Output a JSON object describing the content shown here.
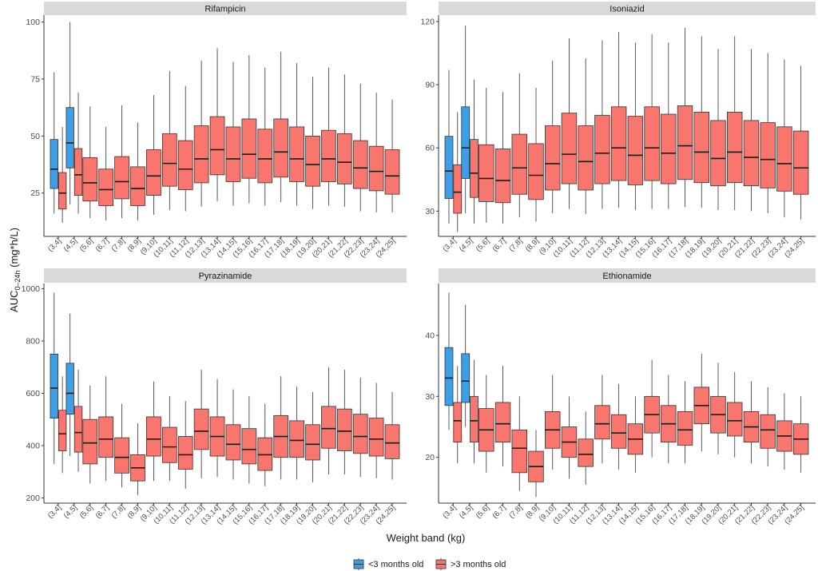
{
  "chart_data": {
    "type": "box",
    "xlabel": "Weight band (kg)",
    "ylabel": "AUC",
    "ylabel_sub": "0–24h",
    "ylabel_unit": " (mg*h/L)",
    "categories": [
      "(3,4]",
      "(4,5]",
      "(5,6]",
      "(6,7]",
      "(7,8]",
      "(8,9]",
      "(9,10]",
      "(10,11]",
      "(11,12]",
      "(12,13]",
      "(13,14]",
      "(14,15]",
      "(15,16]",
      "(16,17]",
      "(17,18]",
      "(18,19]",
      "(19,20]",
      "(20,21]",
      "(21,22]",
      "(22,23]",
      "(23,24]",
      "(24,25]"
    ],
    "legend": [
      {
        "label": "<3 months old",
        "color": "#3d9fe8"
      },
      {
        "label": ">3 months old",
        "color": "#f8766d"
      }
    ],
    "panels": [
      {
        "title": "Rifampicin",
        "ylim": [
          6,
          103
        ],
        "yticks": [
          25,
          50,
          75,
          100
        ],
        "young": [
          {
            "category": "(3,4]",
            "min": 16,
            "q1": 27,
            "median": 35.5,
            "q3": 48.5,
            "max": 78
          },
          {
            "category": "(4,5]",
            "min": 20,
            "q1": 36,
            "median": 47,
            "q3": 62.5,
            "max": 100
          }
        ],
        "older": [
          {
            "category": "(3,4]",
            "min": 12,
            "q1": 18,
            "median": 25,
            "q3": 34,
            "max": 54
          },
          {
            "category": "(4,5]",
            "min": 16,
            "q1": 24,
            "median": 33,
            "q3": 44.5,
            "max": 69
          },
          {
            "category": "(5,6]",
            "min": 14,
            "q1": 21.5,
            "median": 29.5,
            "q3": 40.5,
            "max": 63
          },
          {
            "category": "(6,7]",
            "min": 13,
            "q1": 19.5,
            "median": 26.5,
            "q3": 35.5,
            "max": 54
          },
          {
            "category": "(7,8]",
            "min": 14,
            "q1": 22.5,
            "median": 30,
            "q3": 41,
            "max": 63.5
          },
          {
            "category": "(8,9]",
            "min": 13,
            "q1": 19.5,
            "median": 27,
            "q3": 36.5,
            "max": 56
          },
          {
            "category": "(9,10]",
            "min": 15.5,
            "q1": 24,
            "median": 32.5,
            "q3": 44,
            "max": 68
          },
          {
            "category": "(10,11]",
            "min": 17.5,
            "q1": 28,
            "median": 38,
            "q3": 51,
            "max": 78.5
          },
          {
            "category": "(11,12]",
            "min": 17,
            "q1": 26.5,
            "median": 35.5,
            "q3": 48,
            "max": 72
          },
          {
            "category": "(12,13]",
            "min": 19,
            "q1": 29.5,
            "median": 40,
            "q3": 54.5,
            "max": 83
          },
          {
            "category": "(13,14]",
            "min": 21.5,
            "q1": 33,
            "median": 44,
            "q3": 58.5,
            "max": 88.5
          },
          {
            "category": "(14,15]",
            "min": 19.5,
            "q1": 30,
            "median": 40,
            "q3": 54,
            "max": 82.5
          },
          {
            "category": "(15,16]",
            "min": 20.5,
            "q1": 31.5,
            "median": 42,
            "q3": 57.5,
            "max": 85.5
          },
          {
            "category": "(16,17]",
            "min": 19.5,
            "q1": 29.5,
            "median": 40,
            "q3": 53,
            "max": 80
          },
          {
            "category": "(17,18]",
            "min": 21,
            "q1": 32,
            "median": 43,
            "q3": 57.5,
            "max": 87
          },
          {
            "category": "(18,19]",
            "min": 19.5,
            "q1": 30,
            "median": 40,
            "q3": 54,
            "max": 82
          },
          {
            "category": "(19,20]",
            "min": 18,
            "q1": 28,
            "median": 37.5,
            "q3": 50,
            "max": 76
          },
          {
            "category": "(20,21]",
            "min": 19.5,
            "q1": 30,
            "median": 40,
            "q3": 52.5,
            "max": 80
          },
          {
            "category": "(21,22]",
            "min": 19,
            "q1": 29,
            "median": 38.5,
            "q3": 51,
            "max": 77
          },
          {
            "category": "(22,23]",
            "min": 17,
            "q1": 27,
            "median": 36,
            "q3": 48,
            "max": 73
          },
          {
            "category": "(23,24]",
            "min": 16.5,
            "q1": 26,
            "median": 34.5,
            "q3": 45.5,
            "max": 69
          },
          {
            "category": "(24,25]",
            "min": 16.5,
            "q1": 24.5,
            "median": 32.5,
            "q3": 44,
            "max": 66
          }
        ]
      },
      {
        "title": "Isoniazid",
        "ylim": [
          18,
          123
        ],
        "yticks": [
          30,
          60,
          90,
          120
        ],
        "young": [
          {
            "category": "(3,4]",
            "min": 24,
            "q1": 36,
            "median": 49,
            "q3": 65.5,
            "max": 97
          },
          {
            "category": "(4,5]",
            "min": 29,
            "q1": 45.5,
            "median": 60,
            "q3": 79.5,
            "max": 118
          }
        ],
        "older": [
          {
            "category": "(3,4]",
            "min": 20,
            "q1": 29,
            "median": 39,
            "q3": 52,
            "max": 77
          },
          {
            "category": "(4,5]",
            "min": 24,
            "q1": 36.5,
            "median": 48,
            "q3": 64,
            "max": 92.5
          },
          {
            "category": "(5,6]",
            "min": 24.5,
            "q1": 34.5,
            "median": 45.5,
            "q3": 61.5,
            "max": 88.5
          },
          {
            "category": "(6,7]",
            "min": 24,
            "q1": 34,
            "median": 44.5,
            "q3": 59.5,
            "max": 86.5
          },
          {
            "category": "(7,8]",
            "min": 27,
            "q1": 38,
            "median": 50.5,
            "q3": 66.5,
            "max": 95.5
          },
          {
            "category": "(8,9]",
            "min": 25,
            "q1": 35.5,
            "median": 47,
            "q3": 62,
            "max": 88.5
          },
          {
            "category": "(9,10]",
            "min": 29,
            "q1": 40,
            "median": 52.5,
            "q3": 70.5,
            "max": 101.5
          },
          {
            "category": "(10,11]",
            "min": 31,
            "q1": 43,
            "median": 57,
            "q3": 76.5,
            "max": 112
          },
          {
            "category": "(11,12]",
            "min": 28.5,
            "q1": 40,
            "median": 53.5,
            "q3": 70.5,
            "max": 102.5
          },
          {
            "category": "(12,13]",
            "min": 31,
            "q1": 43,
            "median": 57.5,
            "q3": 75.5,
            "max": 111
          },
          {
            "category": "(13,14]",
            "min": 31.5,
            "q1": 44.5,
            "median": 60,
            "q3": 79.5,
            "max": 115
          },
          {
            "category": "(14,15]",
            "min": 30.5,
            "q1": 42.5,
            "median": 56.5,
            "q3": 75,
            "max": 110
          },
          {
            "category": "(15,16]",
            "min": 31,
            "q1": 44.5,
            "median": 60,
            "q3": 79.5,
            "max": 114
          },
          {
            "category": "(16,17]",
            "min": 31,
            "q1": 43,
            "median": 57.5,
            "q3": 76,
            "max": 110
          },
          {
            "category": "(17,18]",
            "min": 32,
            "q1": 45,
            "median": 61,
            "q3": 80,
            "max": 117
          },
          {
            "category": "(18,19]",
            "min": 31.5,
            "q1": 43.5,
            "median": 58,
            "q3": 77,
            "max": 113
          },
          {
            "category": "(19,20]",
            "min": 30.5,
            "q1": 42,
            "median": 55,
            "q3": 73,
            "max": 107
          },
          {
            "category": "(20,21]",
            "min": 30.5,
            "q1": 43.5,
            "median": 58,
            "q3": 77,
            "max": 113
          },
          {
            "category": "(21,22]",
            "min": 30,
            "q1": 42,
            "median": 55.5,
            "q3": 73,
            "max": 107
          },
          {
            "category": "(22,23]",
            "min": 29,
            "q1": 41,
            "median": 54.5,
            "q3": 72,
            "max": 105
          },
          {
            "category": "(23,24]",
            "min": 27,
            "q1": 39.5,
            "median": 52.5,
            "q3": 70,
            "max": 102
          },
          {
            "category": "(24,25]",
            "min": 26,
            "q1": 38,
            "median": 50.5,
            "q3": 68,
            "max": 99
          }
        ]
      },
      {
        "title": "Pyrazinamide",
        "ylim": [
          180,
          1020
        ],
        "yticks": [
          200,
          400,
          600,
          800,
          1000
        ],
        "young": [
          {
            "category": "(3,4]",
            "min": 330,
            "q1": 505,
            "median": 620,
            "q3": 750,
            "max": 985
          },
          {
            "category": "(4,5]",
            "min": 360,
            "q1": 520,
            "median": 600,
            "q3": 715,
            "max": 905
          }
        ],
        "older": [
          {
            "category": "(3,4]",
            "min": 295,
            "q1": 380,
            "median": 445,
            "q3": 535,
            "max": 665
          },
          {
            "category": "(4,5]",
            "min": 300,
            "q1": 375,
            "median": 450,
            "q3": 550,
            "max": 690
          },
          {
            "category": "(5,6]",
            "min": 255,
            "q1": 330,
            "median": 410,
            "q3": 500,
            "max": 630
          },
          {
            "category": "(6,7]",
            "min": 265,
            "q1": 355,
            "median": 425,
            "q3": 510,
            "max": 665
          },
          {
            "category": "(7,8]",
            "min": 240,
            "q1": 295,
            "median": 355,
            "q3": 430,
            "max": 560
          },
          {
            "category": "(8,9]",
            "min": 210,
            "q1": 265,
            "median": 315,
            "q3": 365,
            "max": 485
          },
          {
            "category": "(9,10]",
            "min": 265,
            "q1": 360,
            "median": 425,
            "q3": 510,
            "max": 645
          },
          {
            "category": "(10,11]",
            "min": 265,
            "q1": 335,
            "median": 395,
            "q3": 470,
            "max": 590
          },
          {
            "category": "(11,12]",
            "min": 235,
            "q1": 310,
            "median": 365,
            "q3": 435,
            "max": 570
          },
          {
            "category": "(12,13]",
            "min": 275,
            "q1": 385,
            "median": 455,
            "q3": 540,
            "max": 690
          },
          {
            "category": "(13,14]",
            "min": 280,
            "q1": 360,
            "median": 435,
            "q3": 510,
            "max": 655
          },
          {
            "category": "(14,15]",
            "min": 270,
            "q1": 345,
            "median": 405,
            "q3": 480,
            "max": 615
          },
          {
            "category": "(15,16]",
            "min": 255,
            "q1": 330,
            "median": 385,
            "q3": 465,
            "max": 590
          },
          {
            "category": "(16,17]",
            "min": 245,
            "q1": 305,
            "median": 365,
            "q3": 430,
            "max": 560
          },
          {
            "category": "(17,18]",
            "min": 270,
            "q1": 355,
            "median": 435,
            "q3": 515,
            "max": 665
          },
          {
            "category": "(18,19]",
            "min": 270,
            "q1": 355,
            "median": 420,
            "q3": 495,
            "max": 625
          },
          {
            "category": "(19,20]",
            "min": 260,
            "q1": 345,
            "median": 405,
            "q3": 480,
            "max": 605
          },
          {
            "category": "(20,21]",
            "min": 290,
            "q1": 390,
            "median": 465,
            "q3": 550,
            "max": 700
          },
          {
            "category": "(21,22]",
            "min": 290,
            "q1": 380,
            "median": 455,
            "q3": 540,
            "max": 690
          },
          {
            "category": "(22,23]",
            "min": 280,
            "q1": 370,
            "median": 435,
            "q3": 520,
            "max": 660
          },
          {
            "category": "(23,24]",
            "min": 275,
            "q1": 360,
            "median": 425,
            "q3": 505,
            "max": 640
          },
          {
            "category": "(24,25]",
            "min": 270,
            "q1": 350,
            "median": 410,
            "q3": 480,
            "max": 605
          }
        ]
      },
      {
        "title": "Ethionamide",
        "ylim": [
          12.5,
          48.5
        ],
        "yticks": [
          20,
          30,
          40
        ],
        "young": [
          {
            "category": "(3,4]",
            "min": 24.5,
            "q1": 28.5,
            "median": 33,
            "q3": 38,
            "max": 47
          },
          {
            "category": "(4,5]",
            "min": 25,
            "q1": 29,
            "median": 32.5,
            "q3": 37,
            "max": 45
          }
        ],
        "older": [
          {
            "category": "(3,4]",
            "min": 19,
            "q1": 22.5,
            "median": 26,
            "q3": 29,
            "max": 35
          },
          {
            "category": "(4,5]",
            "min": 19,
            "q1": 22.5,
            "median": 26,
            "q3": 30,
            "max": 36
          },
          {
            "category": "(5,6]",
            "min": 17.5,
            "q1": 21,
            "median": 24.5,
            "q3": 28,
            "max": 33.5
          },
          {
            "category": "(6,7]",
            "min": 18.5,
            "q1": 22.5,
            "median": 25.5,
            "q3": 29,
            "max": 35
          },
          {
            "category": "(7,8]",
            "min": 14.5,
            "q1": 17.5,
            "median": 21.5,
            "q3": 24.5,
            "max": 30
          },
          {
            "category": "(8,9]",
            "min": 13.5,
            "q1": 16,
            "median": 18.5,
            "q3": 21,
            "max": 24.5
          },
          {
            "category": "(9,10]",
            "min": 18,
            "q1": 21.5,
            "median": 24.5,
            "q3": 27.5,
            "max": 33.5
          },
          {
            "category": "(10,11]",
            "min": 16.5,
            "q1": 20,
            "median": 22.5,
            "q3": 25,
            "max": 30
          },
          {
            "category": "(11,12]",
            "min": 15.5,
            "q1": 18.5,
            "median": 20.5,
            "q3": 23,
            "max": 27.5
          },
          {
            "category": "(12,13]",
            "min": 19,
            "q1": 23,
            "median": 25.5,
            "q3": 28.5,
            "max": 33.5
          },
          {
            "category": "(13,14]",
            "min": 18,
            "q1": 21.5,
            "median": 24,
            "q3": 27,
            "max": 32
          },
          {
            "category": "(14,15]",
            "min": 17.5,
            "q1": 20.5,
            "median": 23,
            "q3": 25.5,
            "max": 30
          },
          {
            "category": "(15,16]",
            "min": 20,
            "q1": 24,
            "median": 27,
            "q3": 30,
            "max": 36
          },
          {
            "category": "(16,17]",
            "min": 19,
            "q1": 22.5,
            "median": 25.5,
            "q3": 28.5,
            "max": 33.5
          },
          {
            "category": "(17,18]",
            "min": 19,
            "q1": 22,
            "median": 24.5,
            "q3": 27.5,
            "max": 32.5
          },
          {
            "category": "(18,19]",
            "min": 21,
            "q1": 25.5,
            "median": 28.5,
            "q3": 31.5,
            "max": 37
          },
          {
            "category": "(19,20]",
            "min": 20.5,
            "q1": 24,
            "median": 27,
            "q3": 30,
            "max": 35.5
          },
          {
            "category": "(20,21]",
            "min": 20,
            "q1": 23.5,
            "median": 26,
            "q3": 29,
            "max": 34
          },
          {
            "category": "(21,22]",
            "min": 19,
            "q1": 22.5,
            "median": 25,
            "q3": 27.5,
            "max": 32.5
          },
          {
            "category": "(22,23]",
            "min": 18.5,
            "q1": 21.5,
            "median": 24.5,
            "q3": 27,
            "max": 31.5
          },
          {
            "category": "(23,24]",
            "min": 18,
            "q1": 21,
            "median": 23.5,
            "q3": 26,
            "max": 30.5
          },
          {
            "category": "(24,25]",
            "min": 17.5,
            "q1": 20.5,
            "median": 23,
            "q3": 25.5,
            "max": 30
          }
        ]
      }
    ]
  }
}
